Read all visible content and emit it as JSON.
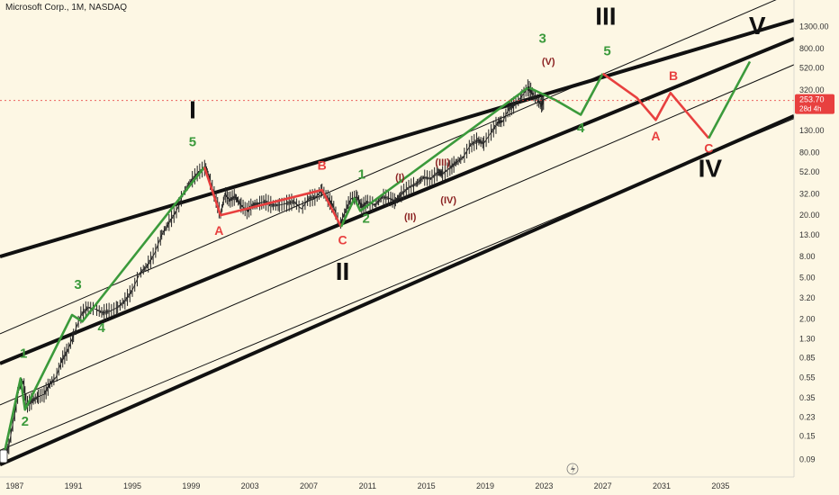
{
  "header": {
    "title": "Microsoft Corp., 1M, NASDAQ"
  },
  "bottom_icon": "lightning-icon",
  "corner_icon": "scale-handle-icon",
  "colors": {
    "background": "#fdf7e4",
    "green": "#3b9a3b",
    "red": "#e8403f",
    "darkred": "#8b2222",
    "black": "#111111",
    "price_tag": "#e8403f"
  },
  "chart_data": {
    "type": "line",
    "title": "Microsoft Corp., 1M, NASDAQ",
    "yscale": "log",
    "ylim": [
      0.07,
      2000
    ],
    "xlim": [
      1986.0,
      2040.0
    ],
    "yticks": [
      "1300.00",
      "800.00",
      "520.00",
      "320.00",
      "130.00",
      "80.00",
      "52.00",
      "32.00",
      "20.00",
      "13.00",
      "8.00",
      "5.00",
      "3.20",
      "2.00",
      "1.30",
      "0.85",
      "0.55",
      "0.35",
      "0.23",
      "0.15",
      "0.09"
    ],
    "xticks": [
      "1987",
      "1991",
      "1995",
      "1999",
      "2003",
      "2007",
      "2011",
      "2015",
      "2019",
      "2023",
      "2027",
      "2031",
      "2035"
    ],
    "current_price": {
      "value": "253.70",
      "countdown": "28d 4h"
    },
    "price_series": [
      [
        1986.2,
        0.09
      ],
      [
        1986.6,
        0.12
      ],
      [
        1987.0,
        0.25
      ],
      [
        1987.3,
        0.45
      ],
      [
        1987.6,
        0.5
      ],
      [
        1987.8,
        0.3
      ],
      [
        1988.2,
        0.33
      ],
      [
        1988.6,
        0.36
      ],
      [
        1989.0,
        0.38
      ],
      [
        1989.4,
        0.48
      ],
      [
        1989.8,
        0.55
      ],
      [
        1990.2,
        0.8
      ],
      [
        1990.6,
        1.0
      ],
      [
        1991.0,
        1.4
      ],
      [
        1991.5,
        2.2
      ],
      [
        1992.0,
        2.6
      ],
      [
        1992.5,
        2.5
      ],
      [
        1993.0,
        2.3
      ],
      [
        1993.5,
        2.4
      ],
      [
        1994.0,
        2.6
      ],
      [
        1994.5,
        3.0
      ],
      [
        1995.0,
        3.8
      ],
      [
        1995.5,
        5.5
      ],
      [
        1996.0,
        6.5
      ],
      [
        1996.5,
        8.5
      ],
      [
        1997.0,
        13
      ],
      [
        1997.5,
        17
      ],
      [
        1998.0,
        22
      ],
      [
        1998.5,
        33
      ],
      [
        1999.0,
        43
      ],
      [
        1999.5,
        52
      ],
      [
        2000.0,
        58
      ],
      [
        2000.3,
        42
      ],
      [
        2000.7,
        28
      ],
      [
        2001.0,
        20
      ],
      [
        2001.3,
        32
      ],
      [
        2001.6,
        28
      ],
      [
        2002.0,
        30
      ],
      [
        2002.4,
        25
      ],
      [
        2002.8,
        22
      ],
      [
        2003.2,
        25
      ],
      [
        2003.6,
        26
      ],
      [
        2004.0,
        27
      ],
      [
        2004.5,
        25
      ],
      [
        2005.0,
        25
      ],
      [
        2005.5,
        26
      ],
      [
        2006.0,
        27
      ],
      [
        2006.5,
        23
      ],
      [
        2007.0,
        29
      ],
      [
        2007.5,
        30
      ],
      [
        2007.9,
        35
      ],
      [
        2008.3,
        29
      ],
      [
        2008.7,
        24
      ],
      [
        2009.1,
        16
      ],
      [
        2009.5,
        22
      ],
      [
        2009.9,
        29
      ],
      [
        2010.3,
        30
      ],
      [
        2010.6,
        24
      ],
      [
        2011.0,
        27
      ],
      [
        2011.5,
        25
      ],
      [
        2012.0,
        30
      ],
      [
        2012.5,
        29
      ],
      [
        2012.9,
        27
      ],
      [
        2013.3,
        32
      ],
      [
        2013.8,
        37
      ],
      [
        2014.3,
        40
      ],
      [
        2014.8,
        46
      ],
      [
        2015.3,
        45
      ],
      [
        2015.8,
        52
      ],
      [
        2016.1,
        50
      ],
      [
        2016.6,
        57
      ],
      [
        2017.0,
        64
      ],
      [
        2017.5,
        72
      ],
      [
        2018.0,
        95
      ],
      [
        2018.5,
        105
      ],
      [
        2018.9,
        98
      ],
      [
        2019.4,
        125
      ],
      [
        2019.9,
        158
      ],
      [
        2020.2,
        160
      ],
      [
        2020.6,
        210
      ],
      [
        2021.0,
        232
      ],
      [
        2021.5,
        280
      ],
      [
        2021.9,
        335
      ],
      [
        2022.2,
        300
      ],
      [
        2022.5,
        260
      ],
      [
        2022.8,
        232
      ],
      [
        2023.0,
        253.7
      ]
    ],
    "projection_path": {
      "green": [
        [
          2022.0,
          336
        ],
        [
          2023.8,
          255
        ],
        [
          2025.5,
          185
        ],
        [
          2027.0,
          460
        ]
      ],
      "red": [
        [
          2027.0,
          460
        ],
        [
          2029.3,
          270
        ],
        [
          2030.6,
          165
        ],
        [
          2031.6,
          300
        ],
        [
          2034.2,
          110
        ]
      ],
      "green_final": [
        [
          2034.2,
          110
        ],
        [
          2037.0,
          600
        ]
      ]
    },
    "wave_path_green": [
      [
        1986.2,
        0.09
      ],
      [
        1987.4,
        0.54
      ],
      [
        1987.7,
        0.27
      ],
      [
        1990.9,
        2.2
      ],
      [
        1991.6,
        1.9
      ],
      [
        1999.9,
        58
      ]
    ],
    "wave_path_red": [
      [
        1999.9,
        58
      ],
      [
        2001.0,
        20
      ],
      [
        2007.9,
        35
      ],
      [
        2009.2,
        15.5
      ]
    ],
    "wave_path_green2": [
      [
        2009.2,
        15.5
      ],
      [
        2010.1,
        29
      ],
      [
        2010.5,
        22
      ],
      [
        2021.9,
        336
      ]
    ],
    "channels": [
      {
        "name": "upper-thick",
        "width": 4,
        "from": [
          1986.0,
          8.0
        ],
        "to": [
          2040.0,
          1500.0
        ]
      },
      {
        "name": "upper-thin",
        "width": 1,
        "from": [
          1986.0,
          1.45
        ],
        "to": [
          2040.0,
          2800.0
        ]
      },
      {
        "name": "middle-thick",
        "width": 4,
        "from": [
          1986.0,
          0.75
        ],
        "to": [
          2040.0,
          1000.0
        ]
      },
      {
        "name": "middle-thin",
        "width": 1,
        "from": [
          1986.0,
          0.3
        ],
        "to": [
          2040.0,
          560.0
        ]
      },
      {
        "name": "lower-thin",
        "width": 1,
        "from": [
          1986.0,
          0.11
        ],
        "to": [
          2040.0,
          170.0
        ]
      },
      {
        "name": "lower-thick",
        "width": 4,
        "from": [
          1986.0,
          0.08
        ],
        "to": [
          2040.0,
          180.0
        ]
      }
    ],
    "annotations": [
      {
        "text": "1",
        "x": 1987.6,
        "y": 0.85,
        "color": "green",
        "size": 15
      },
      {
        "text": "2",
        "x": 1987.7,
        "y": 0.19,
        "color": "green",
        "size": 15
      },
      {
        "text": "3",
        "x": 1991.3,
        "y": 3.9,
        "color": "green",
        "size": 15
      },
      {
        "text": "4",
        "x": 1992.9,
        "y": 1.5,
        "color": "green",
        "size": 15
      },
      {
        "text": "5",
        "x": 1999.1,
        "y": 92,
        "color": "green",
        "size": 15
      },
      {
        "text": "I",
        "x": 1999.1,
        "y": 170,
        "color": "black",
        "size": 28
      },
      {
        "text": "A",
        "x": 2000.9,
        "y": 13,
        "color": "red",
        "size": 14
      },
      {
        "text": "B",
        "x": 2007.9,
        "y": 55,
        "color": "red",
        "size": 14
      },
      {
        "text": "C",
        "x": 2009.3,
        "y": 10.5,
        "color": "red",
        "size": 14
      },
      {
        "text": "II",
        "x": 2009.3,
        "y": 4.8,
        "color": "black",
        "size": 28
      },
      {
        "text": "1",
        "x": 2010.6,
        "y": 45,
        "color": "green",
        "size": 15
      },
      {
        "text": "2",
        "x": 2010.9,
        "y": 17,
        "color": "green",
        "size": 15
      },
      {
        "text": "(I)",
        "x": 2013.2,
        "y": 43,
        "color": "darkred",
        "size": 11
      },
      {
        "text": "(II)",
        "x": 2013.9,
        "y": 18,
        "color": "darkred",
        "size": 11
      },
      {
        "text": "(III)",
        "x": 2016.1,
        "y": 60,
        "color": "darkred",
        "size": 11
      },
      {
        "text": "(IV)",
        "x": 2016.5,
        "y": 26,
        "color": "darkred",
        "size": 11
      },
      {
        "text": "(V)",
        "x": 2023.3,
        "y": 560,
        "color": "darkred",
        "size": 11
      },
      {
        "text": "3",
        "x": 2022.9,
        "y": 910,
        "color": "green",
        "size": 15
      },
      {
        "text": "III",
        "x": 2027.2,
        "y": 1350,
        "color": "black",
        "size": 28
      },
      {
        "text": "4",
        "x": 2025.5,
        "y": 125,
        "color": "green",
        "size": 15
      },
      {
        "text": "5",
        "x": 2027.3,
        "y": 690,
        "color": "green",
        "size": 15
      },
      {
        "text": "A",
        "x": 2030.6,
        "y": 105,
        "color": "red",
        "size": 14
      },
      {
        "text": "B",
        "x": 2031.8,
        "y": 400,
        "color": "red",
        "size": 14
      },
      {
        "text": "C",
        "x": 2034.2,
        "y": 80,
        "color": "red",
        "size": 14
      },
      {
        "text": "IV",
        "x": 2034.3,
        "y": 47,
        "color": "black",
        "size": 28
      },
      {
        "text": "V",
        "x": 2037.5,
        "y": 1100,
        "color": "black",
        "size": 28
      }
    ]
  }
}
